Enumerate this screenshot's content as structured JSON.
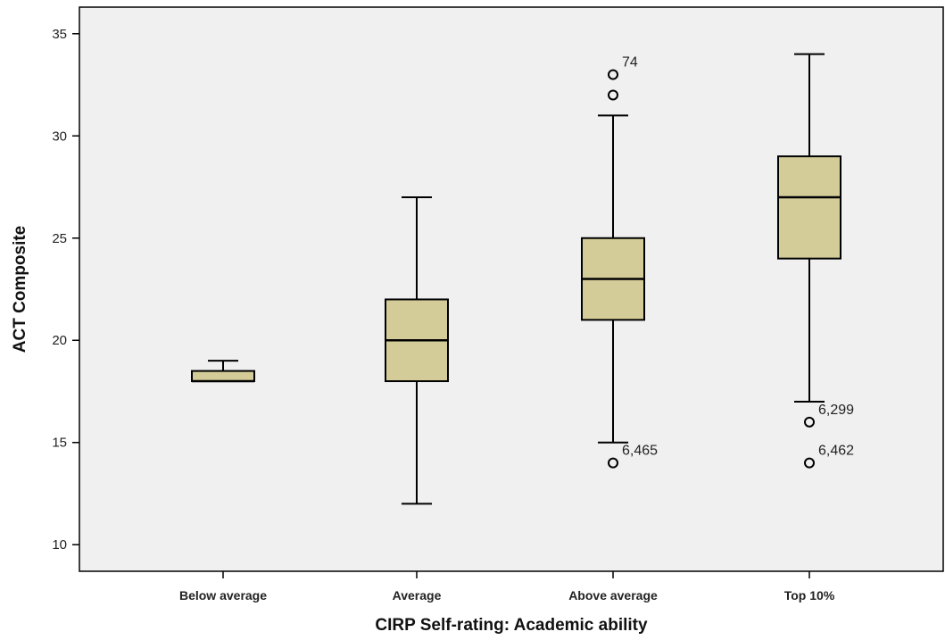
{
  "chart_data": {
    "type": "boxplot",
    "xlabel": "CIRP Self-rating: Academic ability",
    "ylabel": "ACT Composite",
    "ylim": [
      8.7,
      36.3
    ],
    "yticks": [
      10,
      15,
      20,
      25,
      30,
      35
    ],
    "grid": false,
    "colors": {
      "plot_bg": "#f0f0f0",
      "box_fill": "#d4cc98",
      "stroke": "#000000"
    },
    "categories": [
      "Below average",
      "Average",
      "Above average",
      "Top 10%"
    ],
    "boxes": [
      {
        "category": "Below average",
        "whisker_low": 18,
        "q1": 18,
        "median": 18,
        "q3": 18.5,
        "whisker_high": 19,
        "outliers": []
      },
      {
        "category": "Average",
        "whisker_low": 12,
        "q1": 18,
        "median": 20,
        "q3": 22,
        "whisker_high": 27,
        "outliers": []
      },
      {
        "category": "Above average",
        "whisker_low": 15,
        "q1": 21,
        "median": 23,
        "q3": 25,
        "whisker_high": 31,
        "outliers": [
          {
            "value": 33,
            "label": "74"
          },
          {
            "value": 32,
            "label": ""
          },
          {
            "value": 14,
            "label": "6,465"
          }
        ]
      },
      {
        "category": "Top 10%",
        "whisker_low": 17,
        "q1": 24,
        "median": 27,
        "q3": 29,
        "whisker_high": 34,
        "outliers": [
          {
            "value": 16,
            "label": "6,299"
          },
          {
            "value": 14,
            "label": "6,462"
          }
        ]
      }
    ]
  }
}
